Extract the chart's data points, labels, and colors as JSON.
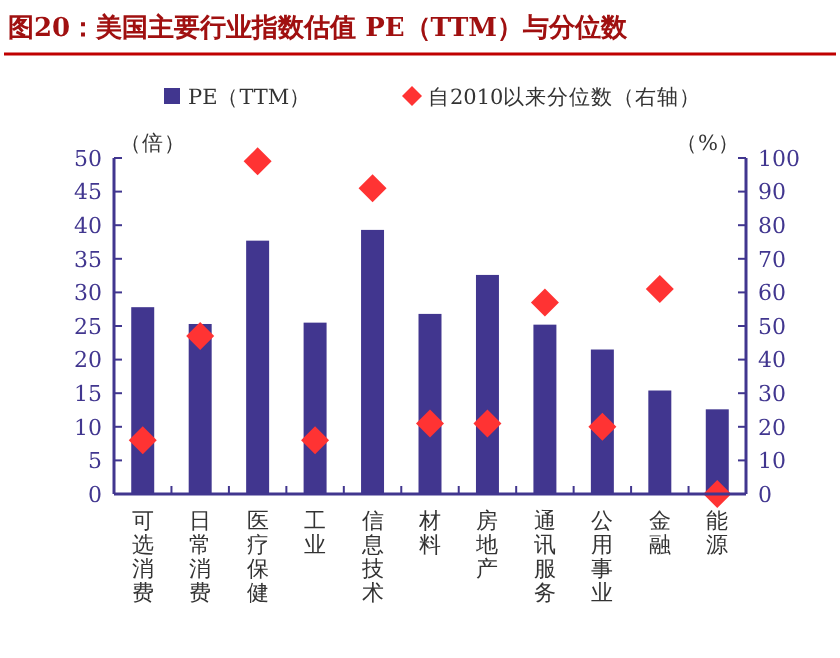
{
  "chart_data": {
    "type": "bar",
    "title": "图20：美国主要行业指数估值 PE（TTM）与分位数",
    "ylabel": "（倍）",
    "y2label": "（%）",
    "categories": [
      "可选消费",
      "日常消费",
      "医疗保健",
      "工业",
      "信息技术",
      "材料",
      "房地产",
      "通讯服务",
      "公用事业",
      "金融",
      "能源"
    ],
    "series": [
      {
        "name": "PE（TTM）",
        "color": "#41368f",
        "values": [
          27.8,
          25.3,
          37.7,
          25.5,
          39.3,
          26.8,
          32.6,
          25.2,
          21.5,
          15.4,
          12.6
        ]
      },
      {
        "name": "自2010以来分位数（右轴）",
        "type": "scatter",
        "axis": "y2",
        "marker": "diamond",
        "color": "#ff3333",
        "values": [
          16,
          47,
          99,
          16,
          91,
          21,
          21,
          57,
          20,
          61,
          0
        ]
      }
    ],
    "ylim": [
      0,
      50
    ],
    "yticks": [
      0,
      5,
      10,
      15,
      20,
      25,
      30,
      35,
      40,
      45,
      50
    ],
    "y2lim": [
      0,
      100
    ],
    "y2ticks": [
      0,
      10,
      20,
      30,
      40,
      50,
      60,
      70,
      80,
      90,
      100
    ],
    "legend": "top",
    "grid": false
  }
}
